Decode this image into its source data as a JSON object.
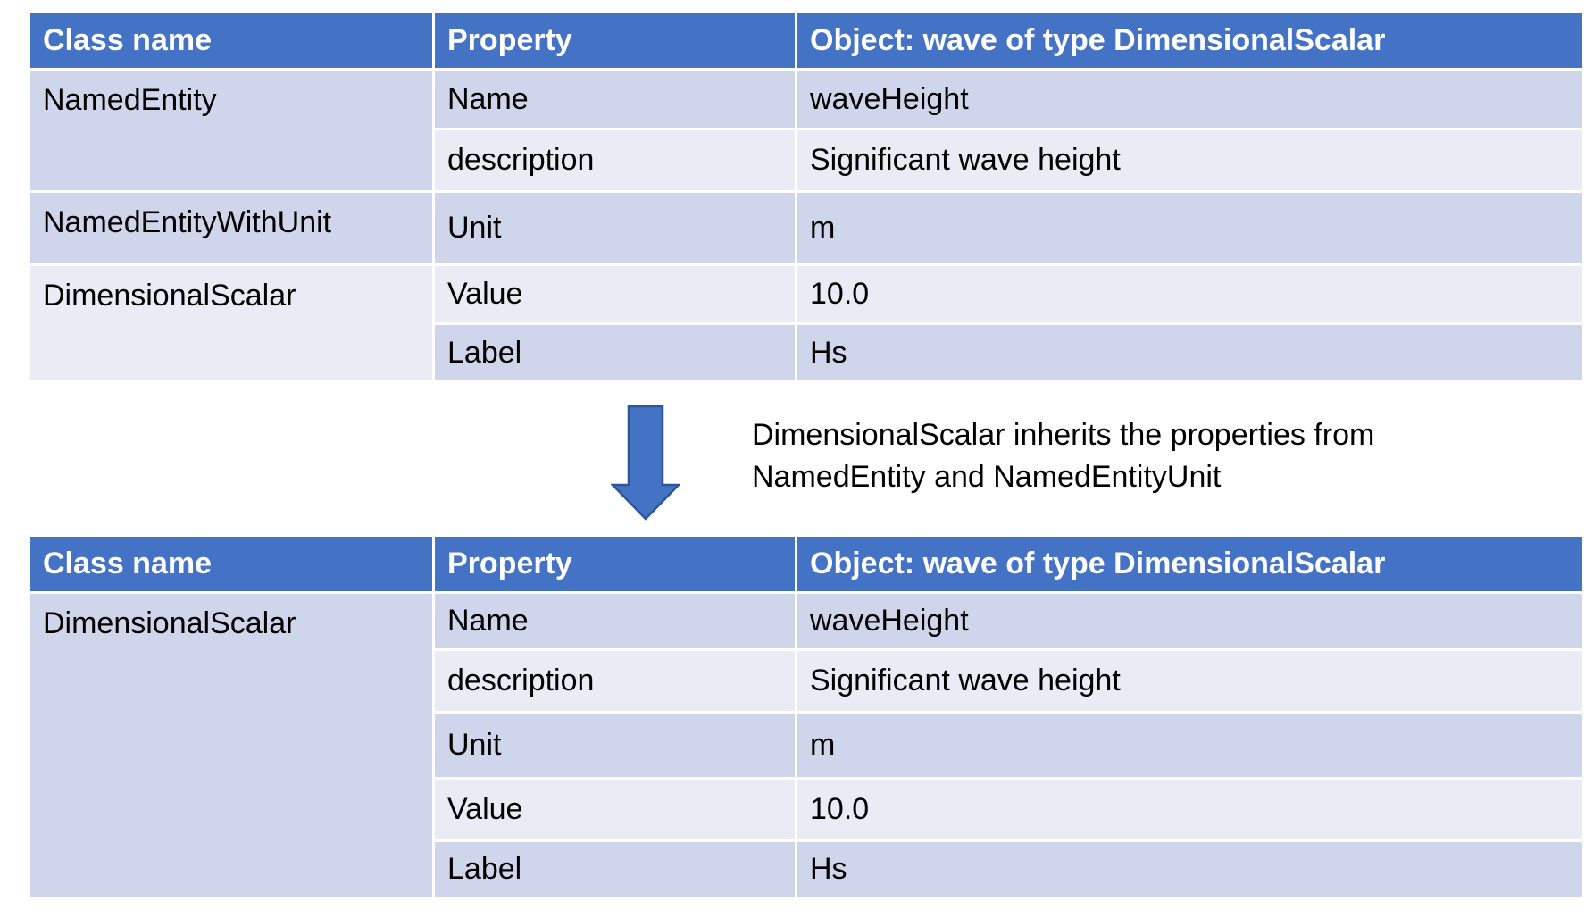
{
  "headers": {
    "class_name": "Class name",
    "property": "Property",
    "object": "Object: wave of type DimensionalScalar"
  },
  "top_table": {
    "class_named_entity": "NamedEntity",
    "class_named_entity_with_unit": "NamedEntityWithUnit",
    "class_dimensional_scalar": "DimensionalScalar",
    "rows": [
      {
        "property": "Name",
        "value": "waveHeight"
      },
      {
        "property": "description",
        "value": "Significant wave height"
      },
      {
        "property": "Unit",
        "value": "m"
      },
      {
        "property": "Value",
        "value": "10.0"
      },
      {
        "property": "Label",
        "value": "Hs"
      }
    ]
  },
  "note": {
    "line1": "DimensionalScalar inherits the properties from",
    "line2": "NamedEntity and NamedEntityUnit"
  },
  "bottom_table": {
    "class_dimensional_scalar": "DimensionalScalar",
    "rows": [
      {
        "property": "Name",
        "value": "waveHeight"
      },
      {
        "property": "description",
        "value": "Significant wave height"
      },
      {
        "property": "Unit",
        "value": "m"
      },
      {
        "property": "Value",
        "value": "10.0"
      },
      {
        "property": "Label",
        "value": "Hs"
      }
    ]
  },
  "colors": {
    "header": "#4472c4",
    "row_dark": "#cfd5ea",
    "row_light": "#e9ebf5",
    "arrow_fill": "#4472c4",
    "arrow_stroke": "#2f5597"
  }
}
